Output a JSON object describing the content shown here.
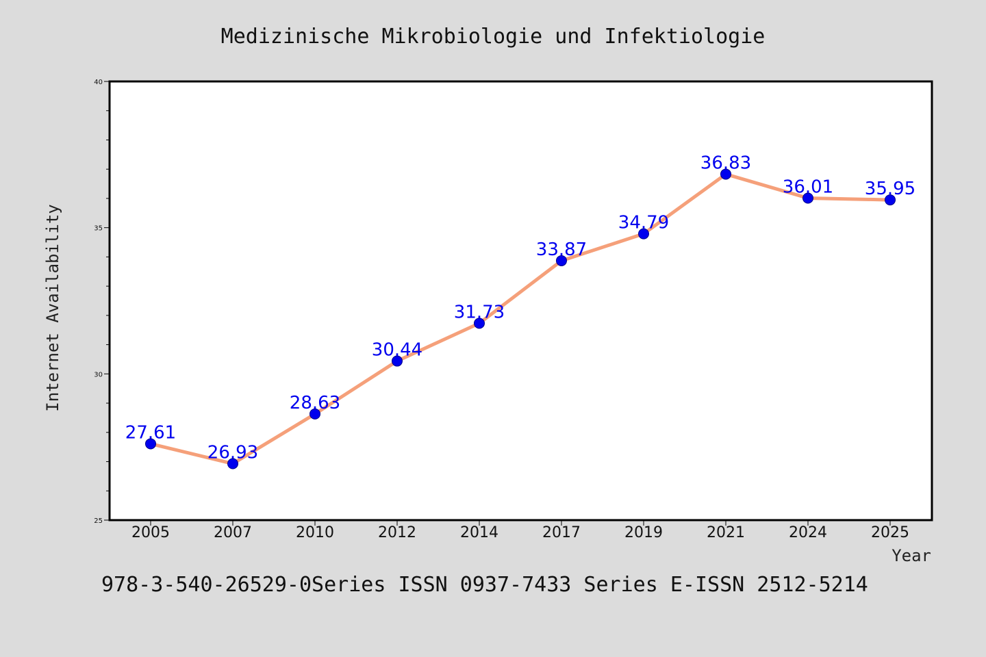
{
  "chart_data": {
    "type": "line",
    "title": "Medizinische Mikrobiologie und Infektiologie",
    "xlabel": "Year",
    "ylabel": "Internet Availability",
    "categories": [
      "2005",
      "2007",
      "2010",
      "2012",
      "2014",
      "2017",
      "2019",
      "2021",
      "2024",
      "2025"
    ],
    "series": [
      {
        "values": [
          27.61,
          26.93,
          28.63,
          30.44,
          31.73,
          33.87,
          34.79,
          36.83,
          36.01,
          35.95
        ],
        "labels": [
          "27.61",
          "26.93",
          "28.63",
          "30.44",
          "31.73",
          "33.87",
          "34.79",
          "36.83",
          "36.01",
          "35.95"
        ]
      }
    ],
    "ylim": [
      25,
      40
    ],
    "yticks": [
      "25",
      "30",
      "35",
      "40"
    ],
    "grid": false,
    "line_color": "#f5a07a",
    "marker_color": "#0000ee",
    "label_color": "#0000ee"
  },
  "footer": {
    "text": "978-3-540-26529-0Series ISSN 0937-7433 Series E-ISSN 2512-5214"
  }
}
